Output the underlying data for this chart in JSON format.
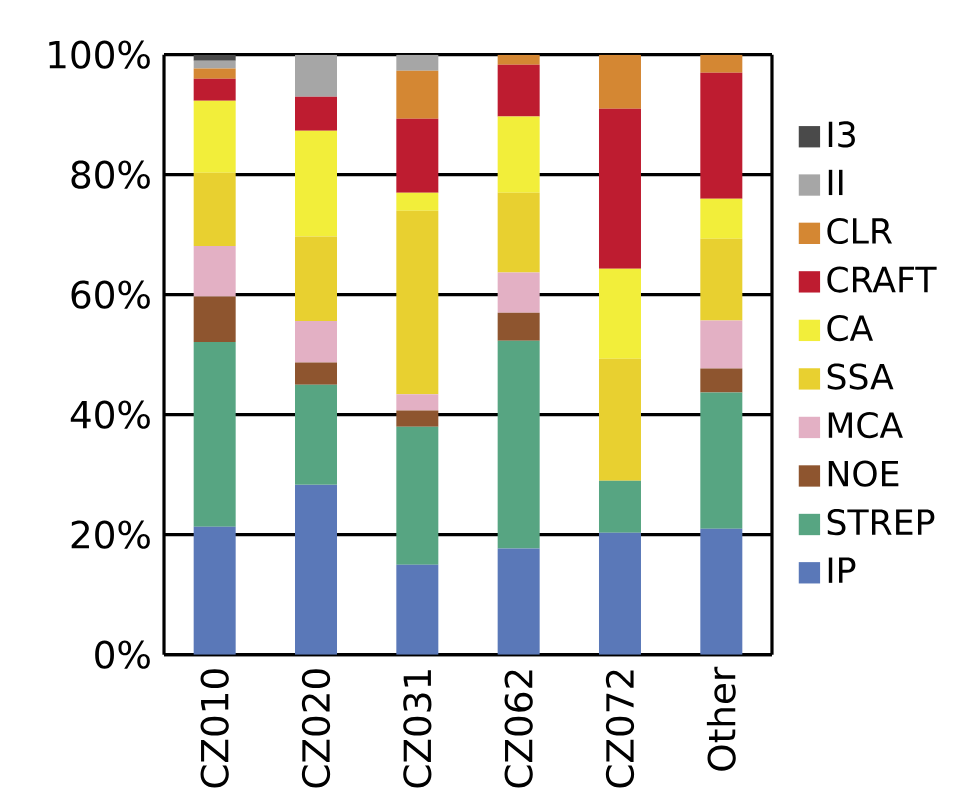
{
  "chart_data": {
    "type": "bar",
    "stacked": true,
    "categories": [
      "CZ010",
      "CZ020",
      "CZ031",
      "CZ062",
      "CZ072",
      "Other"
    ],
    "series": [
      {
        "name": "IP",
        "color": "#5a78b8",
        "values": [
          21.3,
          28.3,
          15,
          17.7,
          20.3,
          21
        ]
      },
      {
        "name": "STREP",
        "color": "#57a582",
        "values": [
          30.8,
          16.7,
          23,
          34.6,
          8.7,
          22.7
        ]
      },
      {
        "name": "NOE",
        "color": "#8e552f",
        "values": [
          7.6,
          3.7,
          2.7,
          4.7,
          0,
          4
        ]
      },
      {
        "name": "MCA",
        "color": "#e3b0c4",
        "values": [
          8.4,
          6.9,
          2.7,
          6.7,
          0,
          8
        ]
      },
      {
        "name": "SSA",
        "color": "#e8d030",
        "values": [
          12.2,
          14.1,
          30.6,
          13.3,
          20.3,
          13.6
        ]
      },
      {
        "name": "CA",
        "color": "#f2ee3a",
        "values": [
          12,
          17.6,
          3,
          12.7,
          15,
          6.7
        ]
      },
      {
        "name": "CRAFT",
        "color": "#be1c30",
        "values": [
          3.7,
          5.7,
          12.3,
          8.6,
          26.7,
          21
        ]
      },
      {
        "name": "CLR",
        "color": "#d48733",
        "values": [
          1.7,
          0,
          8,
          1.7,
          9,
          3
        ]
      },
      {
        "name": "II",
        "color": "#a6a6a6",
        "values": [
          1.3,
          7,
          2.7,
          0,
          0,
          0
        ]
      },
      {
        "name": "I3",
        "color": "#4a4a4a",
        "values": [
          1,
          0,
          0,
          0,
          0,
          0
        ]
      }
    ],
    "ylim": [
      0,
      100
    ],
    "yticks": [
      {
        "value": 0,
        "label": "0%"
      },
      {
        "value": 20,
        "label": "20%"
      },
      {
        "value": 40,
        "label": "40%"
      },
      {
        "value": 60,
        "label": "60%"
      },
      {
        "value": 80,
        "label": "80%"
      },
      {
        "value": 100,
        "label": "100%"
      }
    ],
    "grid": "y",
    "legend": "right"
  }
}
